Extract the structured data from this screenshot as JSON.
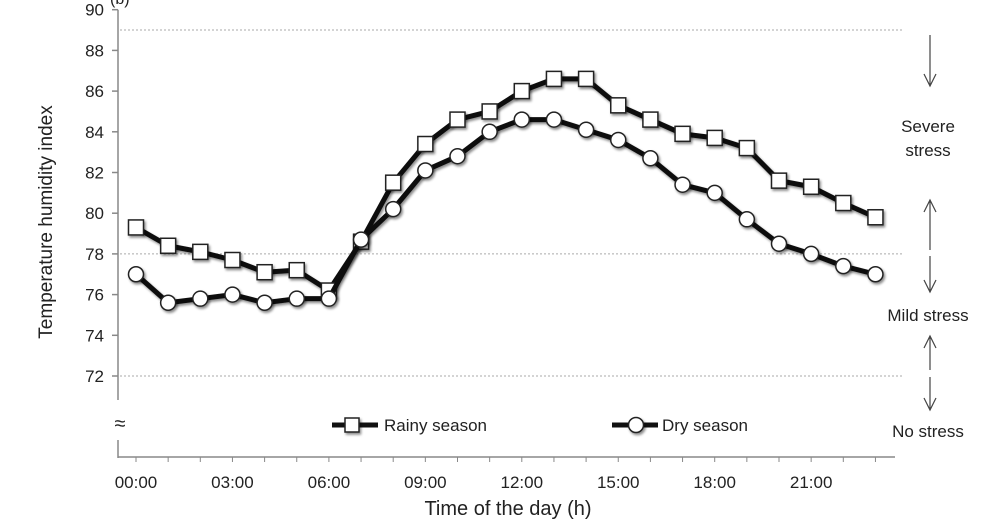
{
  "chart_data": {
    "type": "line",
    "panel_label": "(b)",
    "xlabel": "Time of the day (h)",
    "ylabel": "Temperature humidity index",
    "ylim": [
      72,
      90
    ],
    "yticks": [
      72,
      74,
      76,
      78,
      80,
      82,
      84,
      86,
      88,
      90
    ],
    "xticks": [
      "00:00",
      "03:00",
      "06:00",
      "09:00",
      "12:00",
      "15:00",
      "18:00",
      "21:00"
    ],
    "axis_break_symbol": "≈",
    "x_hours": [
      0,
      1,
      2,
      3,
      4,
      5,
      6,
      7,
      8,
      9,
      10,
      11,
      12,
      13,
      14,
      15,
      16,
      17,
      18,
      19,
      20,
      21,
      22,
      23
    ],
    "series": [
      {
        "name": "Rainy season",
        "marker": "square",
        "values": [
          79.3,
          78.4,
          78.1,
          77.7,
          77.1,
          77.2,
          76.2,
          78.6,
          81.5,
          83.4,
          84.6,
          85.0,
          86.0,
          86.6,
          86.6,
          85.3,
          84.6,
          83.9,
          83.7,
          83.2,
          81.6,
          81.3,
          80.5,
          79.8
        ]
      },
      {
        "name": "Dry season",
        "marker": "circle",
        "values": [
          77.0,
          75.6,
          75.8,
          76.0,
          75.6,
          75.8,
          75.8,
          78.7,
          80.2,
          82.1,
          82.8,
          84.0,
          84.6,
          84.6,
          84.1,
          83.6,
          82.7,
          81.4,
          81.0,
          79.7,
          78.5,
          78.0,
          77.4,
          77.0
        ]
      }
    ],
    "reference_lines": [
      89,
      78,
      72
    ],
    "zones": [
      {
        "label_lines": [
          "Severe",
          "stress"
        ]
      },
      {
        "label_lines": [
          "Mild stress"
        ]
      },
      {
        "label_lines": [
          "No stress"
        ]
      }
    ],
    "legend_placement": "bottom-center",
    "grid": false
  }
}
